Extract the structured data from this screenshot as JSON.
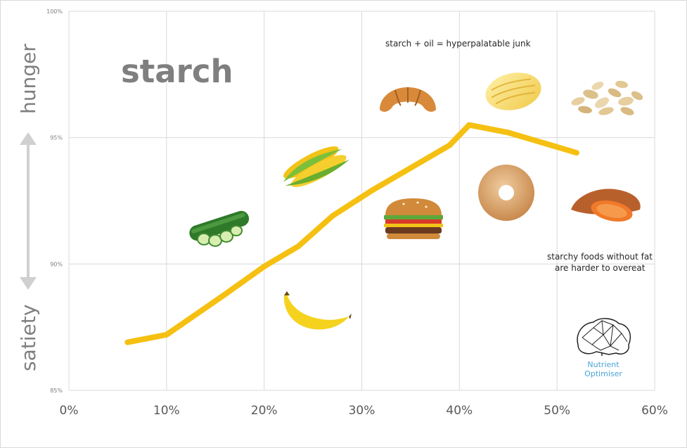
{
  "chart_data": {
    "type": "line",
    "title": "starch",
    "xlabel": "",
    "ylabel_top": "hunger",
    "ylabel_bottom": "satiety",
    "xlim": [
      0,
      60
    ],
    "ylim": [
      85,
      100
    ],
    "x_ticks": [
      "0%",
      "10%",
      "20%",
      "30%",
      "40%",
      "50%",
      "60%"
    ],
    "y_ticks": [
      "85%",
      "90%",
      "95%",
      "100%"
    ],
    "grid": true,
    "series": [
      {
        "color": "#f5c012",
        "x": [
          6,
          10,
          16,
          20,
          23.5,
          27,
          31,
          35,
          39,
          41,
          45,
          52
        ],
        "y": [
          86.9,
          87.2,
          88.8,
          89.9,
          90.7,
          91.9,
          92.9,
          93.8,
          94.7,
          95.5,
          95.2,
          94.4
        ]
      }
    ],
    "annotations": {
      "top": "starch + oil = hyperpalatable junk",
      "right_line1": "starchy foods without fat",
      "right_line2": "are harder to overeat"
    },
    "food_icons": [
      "croissant-icon",
      "potato-chip-icon",
      "oats-icon",
      "corn-icon",
      "cucumber-icon",
      "burger-icon",
      "donut-icon",
      "sweet-potato-icon",
      "banana-icon"
    ],
    "logo": {
      "line1": "Nutrient",
      "line2": "Optimiser"
    },
    "colors": {
      "line": "#f5c012",
      "grid": "#d9d9d9",
      "label": "#7f7f7f",
      "logo": "#4aa3d6"
    }
  }
}
